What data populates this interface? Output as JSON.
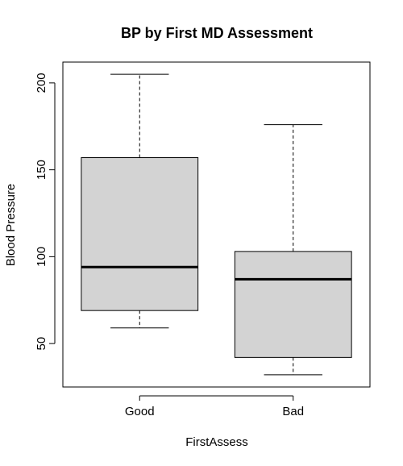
{
  "chart_data": {
    "type": "boxplot",
    "title": "BP by First MD Assessment",
    "xlabel": "FirstAssess",
    "ylabel": "Blood Pressure",
    "categories": [
      "Good",
      "Bad"
    ],
    "boxes": [
      {
        "category": "Good",
        "whisker_low": 59,
        "q1": 69,
        "median": 94,
        "q3": 157,
        "whisker_high": 205
      },
      {
        "category": "Bad",
        "whisker_low": 32,
        "q1": 42,
        "median": 87,
        "q3": 103,
        "whisker_high": 176
      }
    ],
    "ylim": [
      25,
      212
    ],
    "yticks": [
      50,
      100,
      150,
      200
    ],
    "grid": false,
    "box_fill": "#d3d3d3",
    "line_color": "#000000"
  }
}
